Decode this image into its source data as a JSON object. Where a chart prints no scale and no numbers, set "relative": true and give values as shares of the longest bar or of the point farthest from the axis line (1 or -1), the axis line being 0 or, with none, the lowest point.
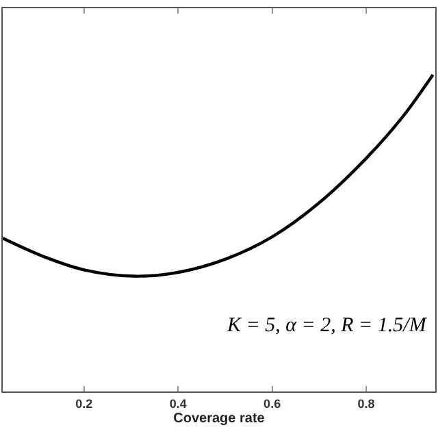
{
  "chart_data": {
    "type": "line",
    "xlabel": "Coverage rate",
    "relative": true,
    "x": [
      0.027,
      0.114,
      0.2,
      0.306,
      0.4,
      0.503,
      0.6,
      0.698,
      0.8,
      0.876,
      0.942
    ],
    "series": [
      {
        "color": "#000000",
        "values": [
          0.484,
          0.426,
          0.384,
          0.364,
          0.376,
          0.419,
          0.488,
          0.593,
          0.736,
          0.864,
          1
        ]
      }
    ],
    "xlim": [
      0.027,
      0.947
    ],
    "xticks": [
      0.2,
      0.4,
      0.6,
      0.8
    ],
    "annotations": [
      "K = 5, α = 2, R = 1.5/M"
    ],
    "grid": false,
    "marker": "none",
    "line_style": "solid"
  }
}
